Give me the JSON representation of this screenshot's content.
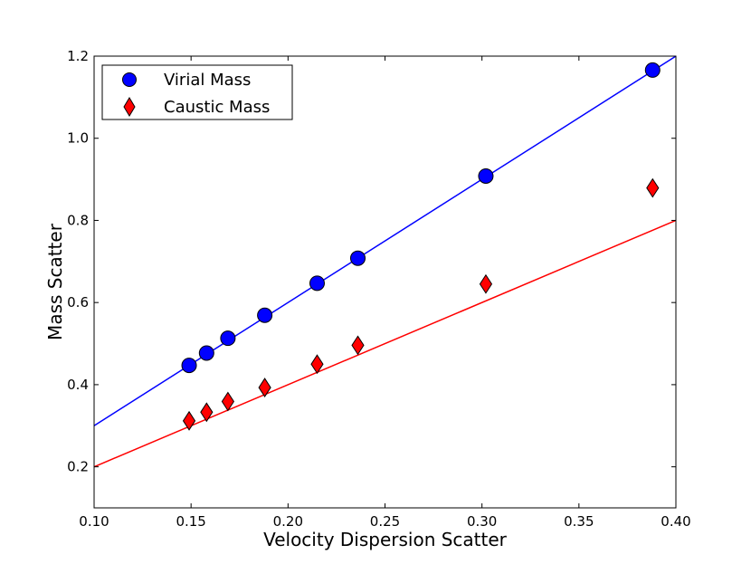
{
  "chart_data": {
    "type": "scatter",
    "title": "",
    "xlabel": "Velocity Dispersion Scatter",
    "ylabel": "Mass Scatter",
    "xlim": [
      0.1,
      0.4
    ],
    "ylim": [
      0.1,
      1.2
    ],
    "xticks": [
      0.1,
      0.15,
      0.2,
      0.25,
      0.3,
      0.35,
      0.4
    ],
    "yticks": [
      0.2,
      0.4,
      0.6,
      0.8,
      1.0,
      1.2
    ],
    "xtick_labels": [
      "0.10",
      "0.15",
      "0.20",
      "0.25",
      "0.30",
      "0.35",
      "0.40"
    ],
    "ytick_labels": [
      "0.2",
      "0.4",
      "0.6",
      "0.8",
      "1.0",
      "1.2"
    ],
    "grid": false,
    "legend_position": "top-left",
    "series": [
      {
        "name": "Virial Mass",
        "marker": "circle",
        "color": "#0000ff",
        "x": [
          0.149,
          0.158,
          0.169,
          0.188,
          0.215,
          0.236,
          0.302,
          0.388
        ],
        "y": [
          0.447,
          0.477,
          0.513,
          0.569,
          0.647,
          0.708,
          0.908,
          1.166
        ]
      },
      {
        "name": "Caustic Mass",
        "marker": "diamond",
        "color": "#ff0000",
        "x": [
          0.149,
          0.158,
          0.169,
          0.188,
          0.215,
          0.236,
          0.302,
          0.388
        ],
        "y": [
          0.312,
          0.333,
          0.359,
          0.393,
          0.45,
          0.496,
          0.645,
          0.879
        ]
      }
    ],
    "fit_lines": [
      {
        "series": "Virial Mass",
        "color": "#0000ff",
        "slope": 3.0,
        "intercept": 0.0
      },
      {
        "series": "Caustic Mass",
        "color": "#ff0000",
        "slope": 2.0,
        "intercept": 0.0
      }
    ]
  }
}
